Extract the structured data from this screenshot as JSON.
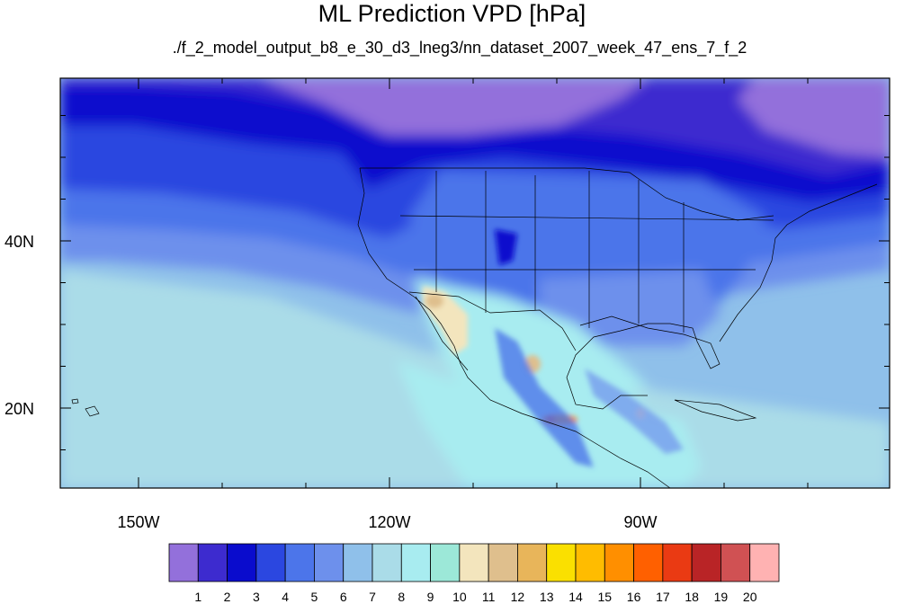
{
  "title": "ML Prediction VPD [hPa]",
  "subtitle": "./f_2_model_output_b8_e_30_d3_lneg3/nn_dataset_2007_week_47_ens_7_f_2",
  "lon_ticks": [
    {
      "label": "150W",
      "value": -150
    },
    {
      "label": "120W",
      "value": -120
    },
    {
      "label": "90W",
      "value": -90
    }
  ],
  "lat_ticks": [
    {
      "label": "40N",
      "value": 40
    },
    {
      "label": "20N",
      "value": 20
    }
  ],
  "colorbar": {
    "colors": [
      "#9370db",
      "#3d2bcf",
      "#0a0ccd",
      "#2b47e0",
      "#4c75ea",
      "#6d90ec",
      "#8fc0ea",
      "#aadce8",
      "#a8ecf0",
      "#9ce8d8",
      "#f3e5bd",
      "#dfbf8d",
      "#e8b55a",
      "#fae000",
      "#ffbc00",
      "#ff8f00",
      "#ff6000",
      "#ea3a13",
      "#b92426",
      "#d05153",
      "#ffb2b2"
    ],
    "labels": [
      "1",
      "2",
      "3",
      "4",
      "5",
      "6",
      "7",
      "8",
      "9",
      "10",
      "11",
      "12",
      "13",
      "14",
      "15",
      "16",
      "17",
      "18",
      "19",
      "20"
    ]
  }
}
